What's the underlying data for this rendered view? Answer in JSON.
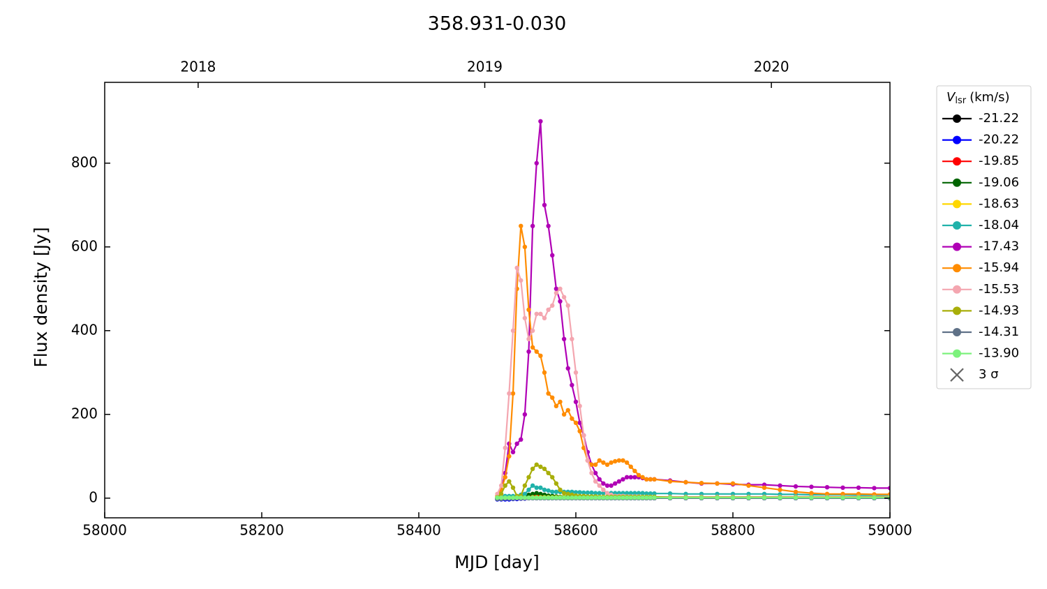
{
  "chart_data": {
    "type": "line",
    "title": "358.931-0.030",
    "xlabel": "MJD [day]",
    "ylabel": "Flux density [Jy]",
    "xlim": [
      58000,
      59000
    ],
    "ylim": [
      -47,
      993
    ],
    "xticks": [
      58000,
      58200,
      58400,
      58600,
      58800,
      59000
    ],
    "yticks": [
      0,
      200,
      400,
      600,
      800
    ],
    "x2ticks": [
      {
        "value": 58119,
        "label": "2018"
      },
      {
        "value": 58484,
        "label": "2019"
      },
      {
        "value": 58849,
        "label": "2020"
      }
    ],
    "legend_title": {
      "symbol": "V",
      "subscript": "lsr",
      "unit": "(km/s)"
    },
    "threshold_label": "3 σ",
    "threshold_color": "#666666",
    "x": [
      58500,
      58505,
      58510,
      58515,
      58520,
      58525,
      58530,
      58535,
      58540,
      58545,
      58550,
      58555,
      58560,
      58565,
      58570,
      58575,
      58580,
      58585,
      58590,
      58595,
      58600,
      58605,
      58610,
      58615,
      58620,
      58625,
      58630,
      58635,
      58640,
      58645,
      58650,
      58655,
      58660,
      58665,
      58670,
      58675,
      58680,
      58685,
      58690,
      58695,
      58700,
      58720,
      58740,
      58760,
      58780,
      58800,
      58820,
      58840,
      58860,
      58880,
      58900,
      58920,
      58940,
      58960,
      58980,
      59000
    ],
    "series": [
      {
        "name": "-21.22",
        "color": "#000000",
        "values": [
          -2,
          -2,
          -2,
          -1,
          -1,
          -1,
          -1,
          0,
          0,
          0,
          0,
          0,
          0,
          0,
          0,
          0,
          0,
          0,
          0,
          0,
          0,
          0,
          0,
          0,
          0,
          0,
          0,
          0,
          0,
          0,
          0,
          0,
          0,
          0,
          0,
          0,
          0,
          0,
          0,
          0,
          0,
          0,
          0,
          0,
          0,
          0,
          0,
          0,
          0,
          0,
          0,
          0,
          0,
          0,
          0,
          0
        ]
      },
      {
        "name": "-20.22",
        "color": "#0000ff",
        "values": [
          -3,
          -3,
          -3,
          -3,
          -2,
          -2,
          -1,
          -1,
          0,
          0,
          0,
          0,
          0,
          0,
          0,
          0,
          0,
          0,
          0,
          0,
          0,
          0,
          0,
          0,
          0,
          0,
          0,
          0,
          0,
          0,
          0,
          0,
          0,
          0,
          0,
          0,
          0,
          0,
          0,
          0,
          0,
          0,
          0,
          0,
          0,
          0,
          0,
          0,
          0,
          0,
          0,
          0,
          0,
          0,
          0,
          0
        ]
      },
      {
        "name": "-19.85",
        "color": "#ff0000",
        "values": [
          0,
          0,
          0,
          0,
          0,
          0,
          0,
          0,
          5,
          8,
          8,
          5,
          2,
          1,
          1,
          1,
          1,
          1,
          1,
          1,
          1,
          1,
          1,
          1,
          1,
          1,
          1,
          1,
          1,
          1,
          1,
          1,
          1,
          1,
          1,
          1,
          1,
          1,
          1,
          1,
          1,
          1,
          1,
          1,
          1,
          1,
          1,
          1,
          1,
          1,
          1,
          1,
          1,
          1,
          1,
          1
        ]
      },
      {
        "name": "-19.06",
        "color": "#006400",
        "values": [
          0,
          1,
          2,
          3,
          2,
          2,
          3,
          5,
          8,
          10,
          12,
          10,
          8,
          6,
          5,
          4,
          3,
          3,
          3,
          3,
          2,
          2,
          2,
          2,
          2,
          2,
          2,
          2,
          2,
          2,
          2,
          2,
          2,
          2,
          2,
          2,
          2,
          2,
          2,
          2,
          2,
          2,
          2,
          2,
          2,
          2,
          2,
          2,
          2,
          2,
          2,
          2,
          2,
          2,
          2,
          2
        ]
      },
      {
        "name": "-18.63",
        "color": "#ffd700",
        "values": [
          1,
          1,
          1,
          1,
          1,
          1,
          1,
          1,
          1,
          2,
          2,
          2,
          2,
          2,
          2,
          2,
          2,
          2,
          1,
          1,
          1,
          1,
          1,
          1,
          1,
          1,
          1,
          1,
          1,
          1,
          1,
          1,
          1,
          1,
          1,
          1,
          1,
          1,
          1,
          1,
          1,
          1,
          1,
          1,
          1,
          1,
          1,
          1,
          1,
          1,
          1,
          1,
          1,
          1,
          1,
          1
        ]
      },
      {
        "name": "-18.04",
        "color": "#20b2aa",
        "values": [
          0,
          2,
          5,
          5,
          5,
          5,
          8,
          10,
          20,
          30,
          25,
          25,
          20,
          18,
          15,
          15,
          15,
          15,
          15,
          15,
          14,
          14,
          13,
          13,
          13,
          12,
          12,
          12,
          12,
          12,
          12,
          12,
          12,
          12,
          12,
          12,
          12,
          12,
          11,
          11,
          11,
          11,
          10,
          10,
          10,
          10,
          10,
          10,
          9,
          9,
          8,
          8,
          8,
          7,
          7,
          7
        ]
      },
      {
        "name": "-17.43",
        "color": "#b000b5",
        "values": [
          0,
          20,
          60,
          130,
          110,
          130,
          140,
          200,
          350,
          650,
          800,
          900,
          700,
          650,
          580,
          500,
          470,
          380,
          310,
          270,
          230,
          180,
          150,
          110,
          80,
          60,
          45,
          35,
          30,
          30,
          35,
          40,
          45,
          50,
          50,
          50,
          50,
          48,
          45,
          45,
          45,
          42,
          38,
          35,
          35,
          33,
          32,
          32,
          30,
          28,
          27,
          26,
          25,
          25,
          24,
          24
        ]
      },
      {
        "name": "-15.94",
        "color": "#ff8c00",
        "values": [
          5,
          20,
          50,
          100,
          250,
          500,
          650,
          600,
          450,
          360,
          350,
          340,
          300,
          250,
          240,
          220,
          230,
          200,
          210,
          190,
          180,
          160,
          120,
          90,
          80,
          80,
          90,
          85,
          80,
          85,
          88,
          90,
          90,
          85,
          75,
          65,
          55,
          50,
          45,
          45,
          45,
          40,
          38,
          36,
          35,
          35,
          30,
          25,
          20,
          15,
          12,
          10,
          10,
          10,
          9,
          9
        ]
      },
      {
        "name": "-15.53",
        "color": "#f4a6b0",
        "values": [
          10,
          30,
          120,
          250,
          400,
          550,
          520,
          430,
          380,
          400,
          440,
          440,
          430,
          450,
          460,
          490,
          500,
          480,
          460,
          380,
          300,
          220,
          150,
          90,
          60,
          40,
          30,
          20,
          12,
          8,
          5,
          5,
          5,
          4,
          4,
          4,
          4,
          3,
          3,
          3,
          3,
          3,
          3,
          3,
          3,
          3,
          3,
          3,
          3,
          3,
          3,
          3,
          3,
          3,
          3,
          3
        ]
      },
      {
        "name": "-14.93",
        "color": "#a8ae0a",
        "values": [
          2,
          10,
          30,
          40,
          25,
          5,
          5,
          30,
          50,
          70,
          80,
          75,
          70,
          60,
          50,
          35,
          20,
          12,
          10,
          8,
          6,
          5,
          5,
          4,
          4,
          4,
          3,
          3,
          3,
          3,
          3,
          3,
          3,
          3,
          3,
          3,
          3,
          3,
          3,
          3,
          3,
          2,
          2,
          2,
          2,
          2,
          2,
          2,
          2,
          2,
          2,
          2,
          2,
          2,
          2,
          2
        ]
      },
      {
        "name": "-14.31",
        "color": "#5f7187",
        "values": [
          -2,
          -2,
          -1,
          -1,
          -1,
          0,
          0,
          0,
          0,
          0,
          0,
          0,
          0,
          0,
          0,
          0,
          0,
          0,
          0,
          0,
          0,
          0,
          0,
          0,
          0,
          0,
          0,
          0,
          0,
          0,
          0,
          0,
          0,
          0,
          0,
          0,
          0,
          0,
          0,
          0,
          0,
          0,
          0,
          0,
          0,
          0,
          0,
          0,
          0,
          0,
          0,
          0,
          0,
          0,
          0,
          0
        ]
      },
      {
        "name": "-13.90",
        "color": "#7cf27c",
        "values": [
          1,
          1,
          1,
          1,
          1,
          1,
          1,
          1,
          1,
          1,
          1,
          1,
          1,
          1,
          1,
          1,
          1,
          1,
          1,
          1,
          1,
          1,
          1,
          1,
          1,
          1,
          1,
          1,
          1,
          1,
          1,
          1,
          1,
          1,
          1,
          1,
          1,
          1,
          1,
          1,
          1,
          1,
          1,
          1,
          1,
          1,
          1,
          1,
          1,
          1,
          1,
          1,
          1,
          1,
          1,
          1
        ]
      }
    ]
  }
}
